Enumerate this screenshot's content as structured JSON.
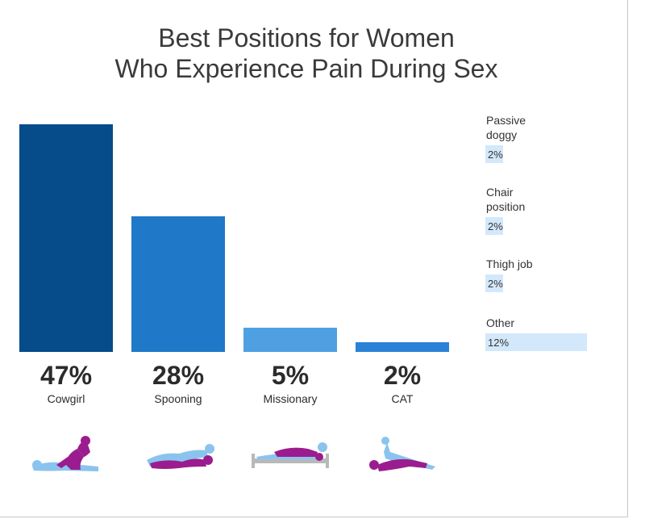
{
  "title_line1": "Best Positions for Women",
  "title_line2": "Who Experience Pain During Sex",
  "chart_data": {
    "type": "bar",
    "title": "Best Positions for Women Who Experience Pain During Sex",
    "categories": [
      "Cowgirl",
      "Spooning",
      "Missionary",
      "CAT"
    ],
    "values": [
      47,
      28,
      5,
      2
    ],
    "value_labels": [
      "47%",
      "28%",
      "5%",
      "2%"
    ],
    "unit": "%",
    "bar_colors": [
      "#064b8a",
      "#1f78c8",
      "#4fa0e2",
      "#2a82d6"
    ],
    "side_items": [
      {
        "label_lines": [
          "Passive",
          "doggy"
        ],
        "value": 2,
        "value_label": "2%"
      },
      {
        "label_lines": [
          "Chair",
          "position"
        ],
        "value": 2,
        "value_label": "2%"
      },
      {
        "label_lines": [
          "Thigh job"
        ],
        "value": 2,
        "value_label": "2%"
      },
      {
        "label_lines": [
          "Other"
        ],
        "value": 12,
        "value_label": "12%"
      }
    ],
    "side_color": "#d3e8fb",
    "icons": [
      "cowgirl-position-icon",
      "spooning-position-icon",
      "missionary-position-icon",
      "cat-position-icon"
    ],
    "icon_colors": {
      "partner_a": "#8ac4ee",
      "partner_b": "#9b1c8e",
      "bed": "#b9b9b9"
    }
  }
}
